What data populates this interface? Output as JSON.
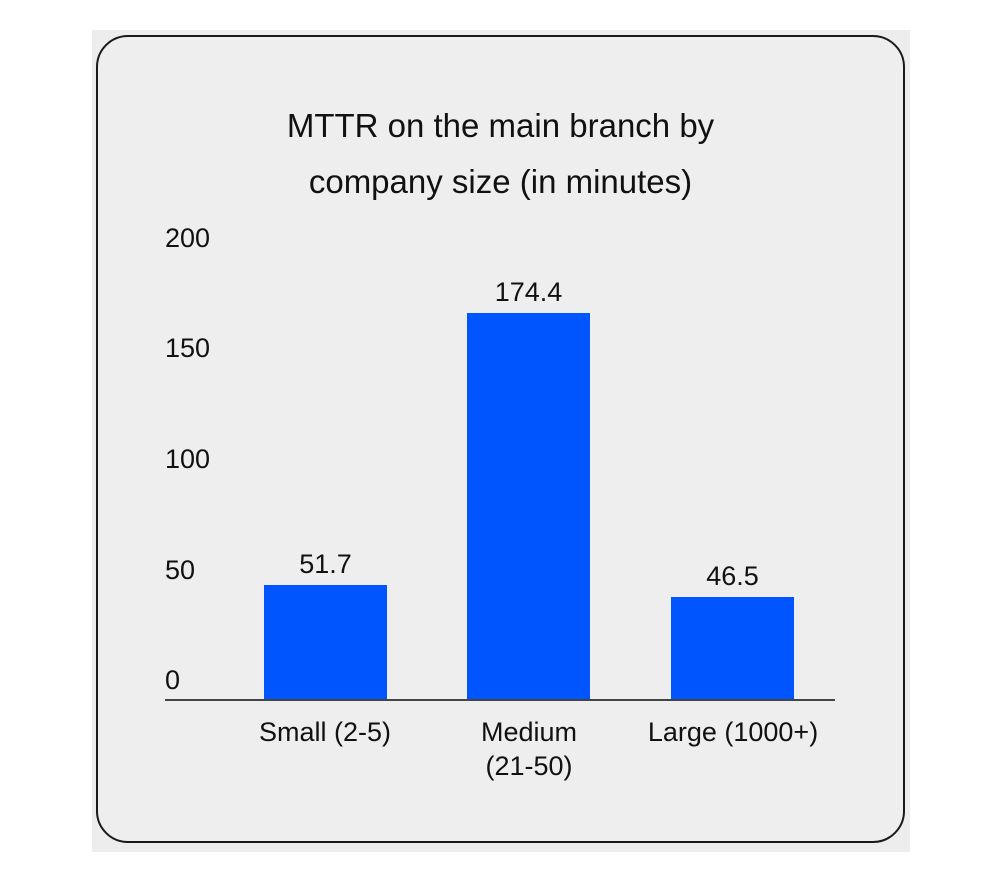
{
  "chart_data": {
    "type": "bar",
    "title": "MTTR on the main branch by company size (in minutes)",
    "title_lines": [
      "MTTR on the main branch by",
      "company size (in minutes)"
    ],
    "categories": [
      "Small (2-5)",
      "Medium (21-50)",
      "Large (1000+)"
    ],
    "category_lines": [
      [
        "Small (2-5)"
      ],
      [
        "Medium",
        "(21-50)"
      ],
      [
        "Large (1000+)"
      ]
    ],
    "values": [
      51.7,
      174.4,
      46.5
    ],
    "value_labels": [
      "51.7",
      "174.4",
      "46.5"
    ],
    "xlabel": "",
    "ylabel": "",
    "ylim": [
      0,
      200
    ],
    "yticks": [
      "200",
      "150",
      "100",
      "50",
      "0"
    ],
    "grid": false,
    "legend": null,
    "bar_color": "#0055ff"
  }
}
